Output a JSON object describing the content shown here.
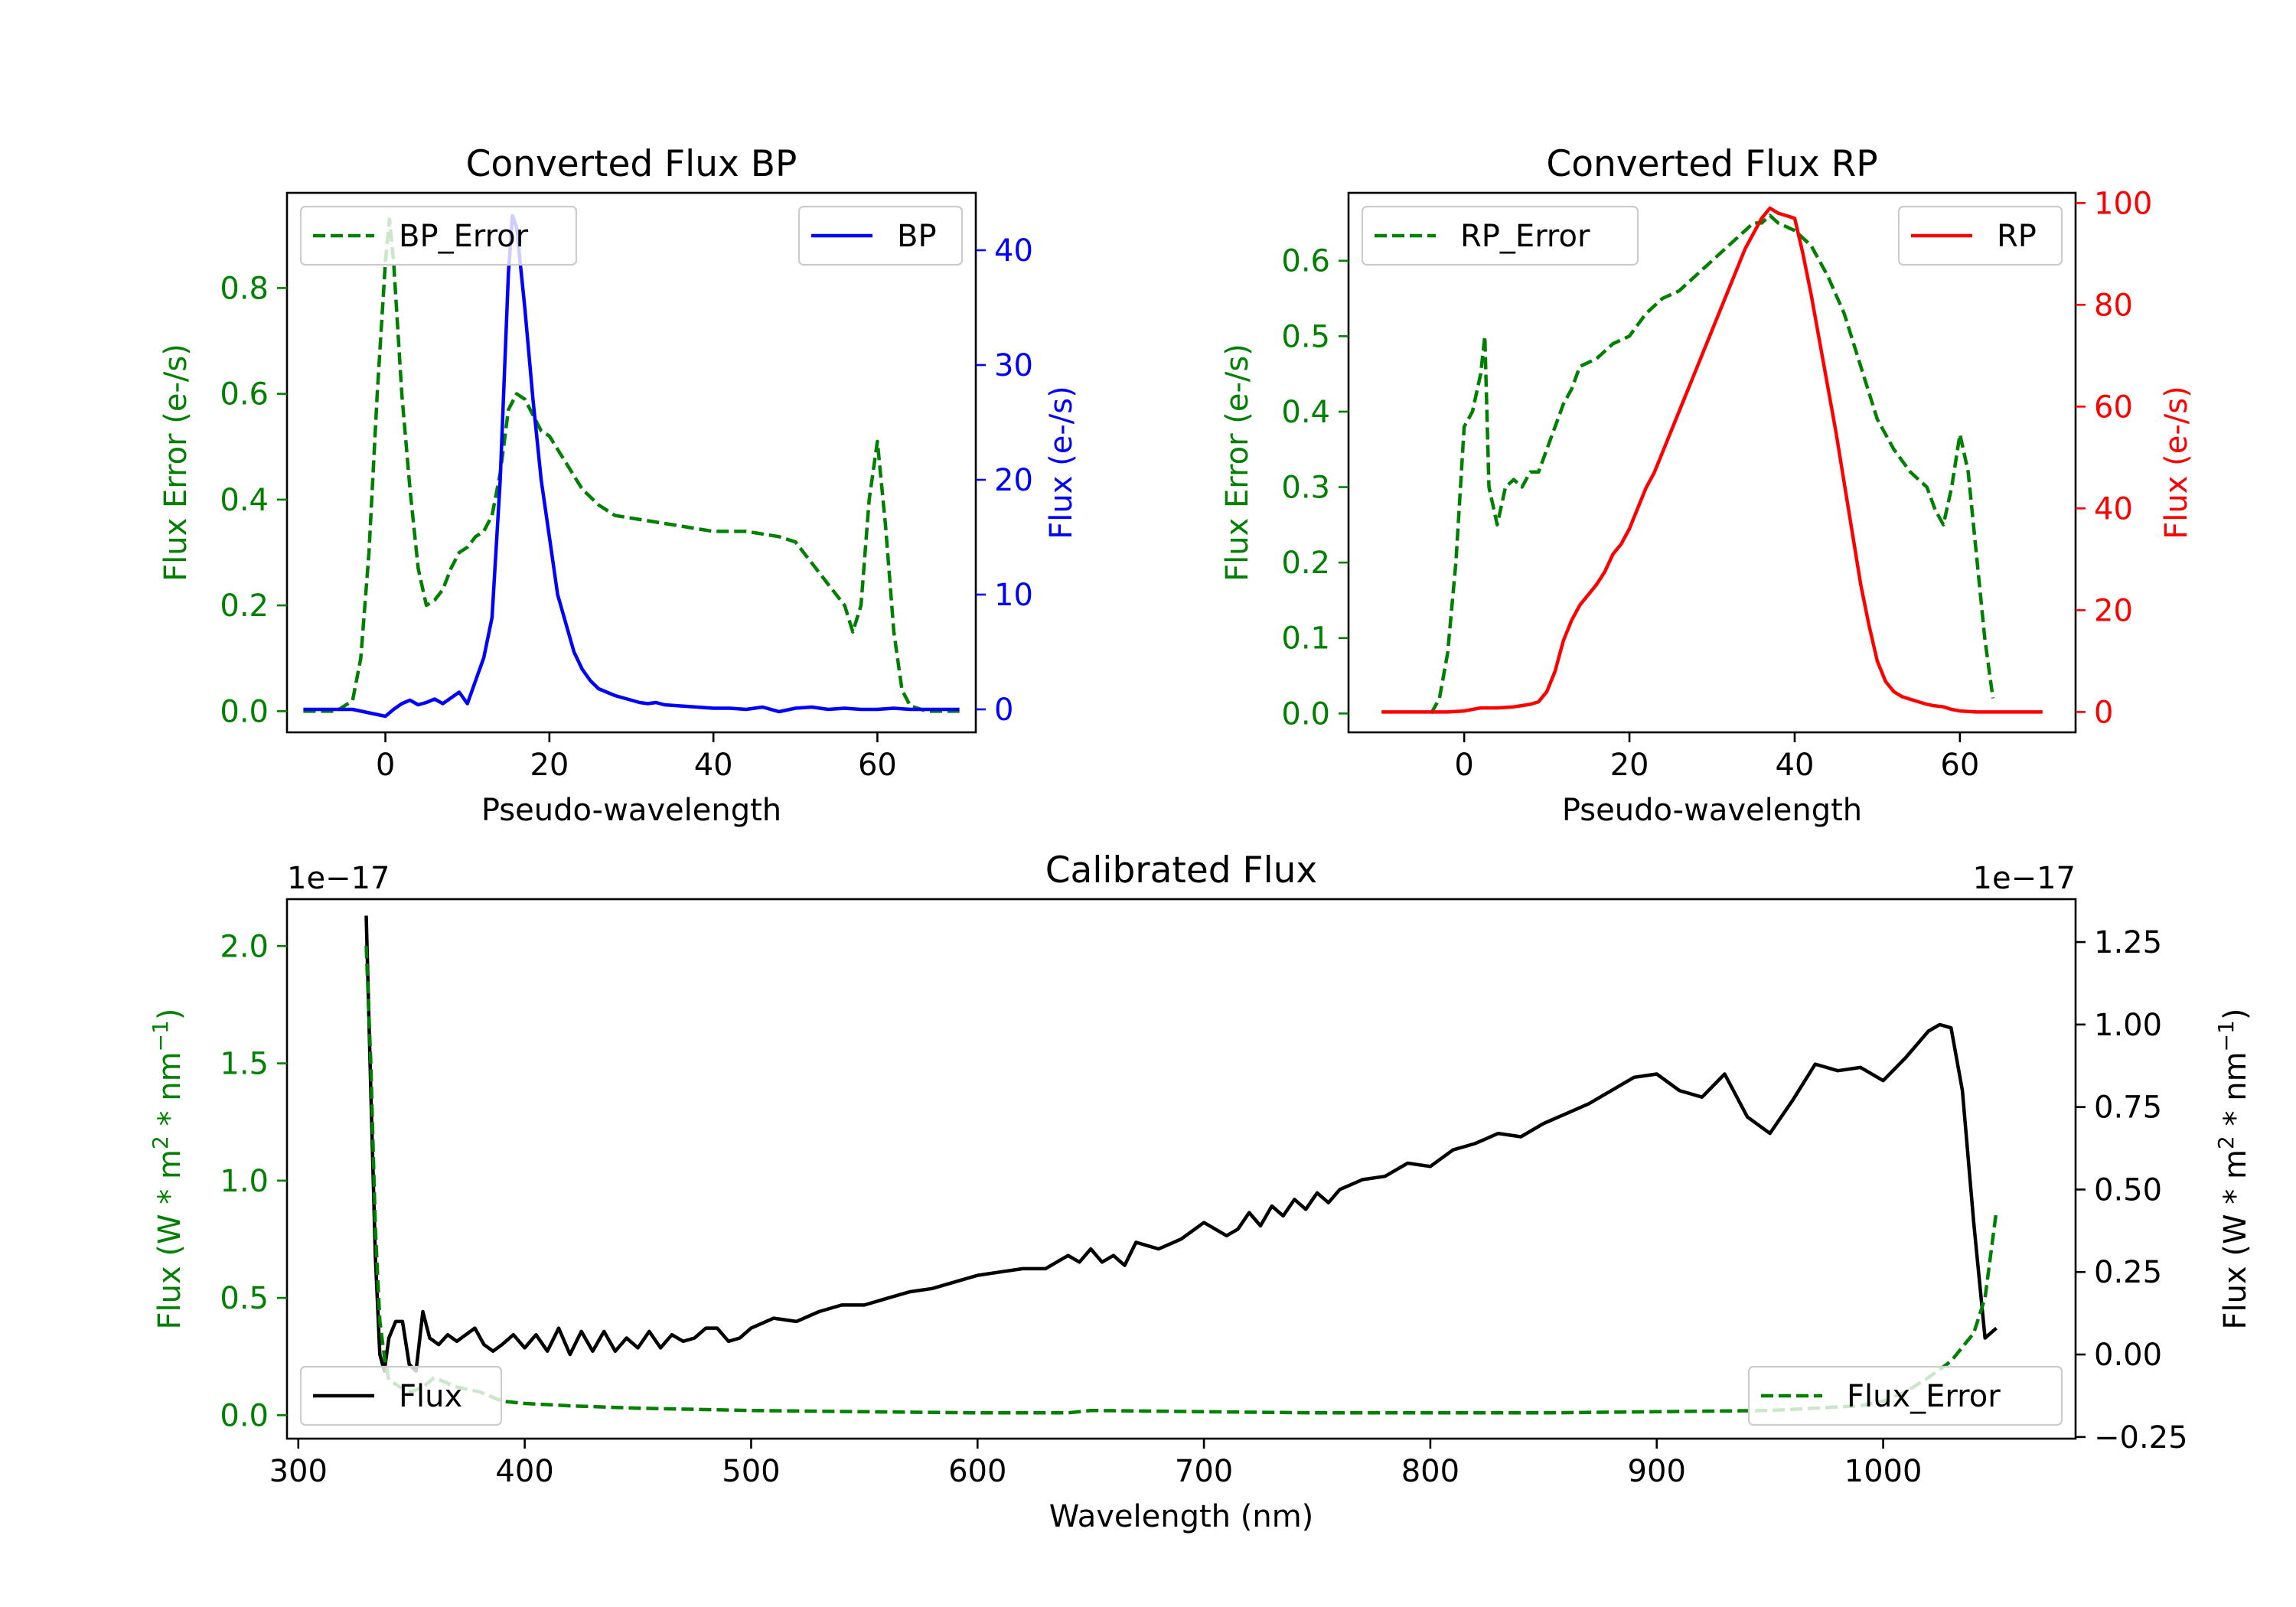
{
  "colors": {
    "error": "#008000",
    "bp": "#0000ff",
    "rp": "#ff0000",
    "flux": "#000000"
  },
  "chart_data": [
    {
      "type": "line",
      "title": "Converted Flux BP",
      "xlabel": "Pseudo-wavelength",
      "ylabel_left": "Flux Error (e-/s)",
      "ylabel_right": "Flux (e-/s)",
      "xlim": [
        -12,
        72
      ],
      "ylim_left": [
        -0.04,
        0.98
      ],
      "ylim_right": [
        -2,
        45
      ],
      "x_ticks": [
        0,
        20,
        40,
        60
      ],
      "x_tick_labels": [
        "0",
        "20",
        "40",
        "60"
      ],
      "y_left_ticks": [
        0.0,
        0.2,
        0.4,
        0.6,
        0.8
      ],
      "y_left_tick_labels": [
        "0.0",
        "0.2",
        "0.4",
        "0.6",
        "0.8"
      ],
      "y_right_ticks": [
        0,
        10,
        20,
        30,
        40
      ],
      "y_right_tick_labels": [
        "0",
        "10",
        "20",
        "30",
        "40"
      ],
      "series": [
        {
          "name": "BP_Error",
          "axis": "left",
          "style": "dashed",
          "color": "#008000",
          "legend": "top-left",
          "x": [
            -10,
            -6,
            -4,
            -3,
            -2,
            -1,
            0,
            0.5,
            1,
            2,
            3,
            4,
            5,
            6,
            7,
            8,
            9,
            10,
            11,
            12,
            13,
            14,
            15,
            16,
            17,
            18,
            19,
            20,
            22,
            24,
            26,
            28,
            30,
            32,
            34,
            36,
            38,
            40,
            42,
            44,
            46,
            48,
            50,
            52,
            54,
            56,
            57,
            58,
            59,
            60,
            61,
            62,
            63,
            64,
            66,
            70
          ],
          "values": [
            0.0,
            0.0,
            0.02,
            0.1,
            0.3,
            0.6,
            0.85,
            0.93,
            0.85,
            0.6,
            0.42,
            0.27,
            0.2,
            0.21,
            0.23,
            0.27,
            0.3,
            0.31,
            0.33,
            0.34,
            0.37,
            0.45,
            0.57,
            0.6,
            0.59,
            0.56,
            0.53,
            0.52,
            0.47,
            0.42,
            0.39,
            0.37,
            0.365,
            0.36,
            0.355,
            0.35,
            0.345,
            0.34,
            0.34,
            0.34,
            0.335,
            0.33,
            0.32,
            0.28,
            0.24,
            0.2,
            0.15,
            0.2,
            0.4,
            0.51,
            0.35,
            0.15,
            0.04,
            0.01,
            0.0,
            0.0
          ]
        },
        {
          "name": "BP",
          "axis": "right",
          "style": "solid",
          "color": "#0000ff",
          "legend": "top-right",
          "x": [
            -10,
            -4,
            -2,
            0,
            1,
            2,
            3,
            4,
            5,
            6,
            7,
            8,
            9,
            10,
            11,
            12,
            13,
            14,
            15,
            15.5,
            16,
            17,
            18,
            19,
            20,
            21,
            22,
            23,
            24,
            25,
            26,
            27,
            28,
            29,
            30,
            31,
            32,
            33,
            34,
            35,
            36,
            38,
            40,
            42,
            44,
            46,
            48,
            50,
            52,
            54,
            56,
            58,
            60,
            62,
            64,
            66,
            70
          ],
          "values": [
            0.0,
            0.0,
            -0.3,
            -0.6,
            0.0,
            0.5,
            0.8,
            0.4,
            0.6,
            0.9,
            0.5,
            1.0,
            1.5,
            0.5,
            2.5,
            4.5,
            8.0,
            20.0,
            38.0,
            43.0,
            42.0,
            35.0,
            27.0,
            20.0,
            15.0,
            10.0,
            7.5,
            5.0,
            3.5,
            2.5,
            1.8,
            1.5,
            1.2,
            1.0,
            0.8,
            0.6,
            0.5,
            0.6,
            0.4,
            0.35,
            0.3,
            0.2,
            0.1,
            0.1,
            0.0,
            0.2,
            -0.2,
            0.1,
            0.2,
            0.0,
            0.1,
            0.0,
            0.0,
            0.1,
            0.0,
            0.0,
            0.0
          ]
        }
      ],
      "legend": [
        {
          "label": "BP_Error",
          "series": "BP_Error",
          "placement": "top-left"
        },
        {
          "label": "BP",
          "series": "BP",
          "placement": "top-right"
        }
      ]
    },
    {
      "type": "line",
      "title": "Converted Flux RP",
      "xlabel": "Pseudo-wavelength",
      "ylabel_left": "Flux Error (e-/s)",
      "ylabel_right": "Flux (e-/s)",
      "xlim": [
        -14,
        74
      ],
      "ylim_left": [
        -0.025,
        0.69
      ],
      "ylim_right": [
        -4,
        102
      ],
      "x_ticks": [
        0,
        20,
        40,
        60
      ],
      "x_tick_labels": [
        "0",
        "20",
        "40",
        "60"
      ],
      "y_left_ticks": [
        0.0,
        0.1,
        0.2,
        0.3,
        0.4,
        0.5,
        0.6
      ],
      "y_left_tick_labels": [
        "0.0",
        "0.1",
        "0.2",
        "0.3",
        "0.4",
        "0.5",
        "0.6"
      ],
      "y_right_ticks": [
        0,
        20,
        40,
        60,
        80,
        100
      ],
      "y_right_tick_labels": [
        "0",
        "20",
        "40",
        "60",
        "80",
        "100"
      ],
      "series": [
        {
          "name": "RP_Error",
          "axis": "left",
          "style": "dashed",
          "color": "#008000",
          "legend": "top-left",
          "x": [
            -4,
            -3,
            -2,
            -1,
            0,
            1,
            2,
            2.5,
            3,
            4,
            5,
            6,
            7,
            8,
            9,
            10,
            11,
            12,
            13,
            14,
            16,
            18,
            20,
            22,
            24,
            26,
            28,
            30,
            32,
            34,
            35,
            36,
            37,
            38,
            40,
            42,
            44,
            46,
            48,
            50,
            52,
            54,
            55,
            56,
            57,
            58,
            59,
            60,
            61,
            62,
            63,
            64
          ],
          "values": [
            0.0,
            0.02,
            0.08,
            0.2,
            0.38,
            0.4,
            0.45,
            0.5,
            0.3,
            0.25,
            0.3,
            0.31,
            0.3,
            0.32,
            0.32,
            0.35,
            0.38,
            0.41,
            0.43,
            0.46,
            0.47,
            0.49,
            0.5,
            0.53,
            0.55,
            0.56,
            0.58,
            0.6,
            0.62,
            0.64,
            0.65,
            0.65,
            0.66,
            0.65,
            0.64,
            0.62,
            0.58,
            0.53,
            0.46,
            0.39,
            0.35,
            0.32,
            0.31,
            0.3,
            0.27,
            0.25,
            0.3,
            0.37,
            0.32,
            0.21,
            0.1,
            0.02
          ]
        },
        {
          "name": "RP",
          "axis": "right",
          "style": "solid",
          "color": "#ff0000",
          "legend": "top-right",
          "x": [
            -10,
            -2,
            0,
            2,
            4,
            6,
            8,
            9,
            10,
            11,
            12,
            13,
            14,
            15,
            16,
            17,
            18,
            19,
            20,
            21,
            22,
            23,
            24,
            25,
            26,
            27,
            28,
            29,
            30,
            31,
            32,
            33,
            34,
            35,
            36,
            37,
            38,
            39,
            40,
            41,
            42,
            43,
            44,
            45,
            46,
            47,
            48,
            49,
            50,
            51,
            52,
            53,
            54,
            55,
            56,
            57,
            58,
            59,
            60,
            62,
            64,
            66,
            70
          ],
          "values": [
            0.0,
            0.0,
            0.2,
            0.8,
            0.8,
            1.0,
            1.5,
            2.0,
            4.0,
            8.0,
            14.0,
            18.0,
            21.0,
            23.0,
            25.0,
            27.5,
            31.0,
            33.0,
            36.0,
            40.0,
            44.0,
            47.0,
            51.0,
            55.0,
            59.0,
            63.0,
            67.0,
            71.0,
            75.0,
            79.0,
            83.0,
            87.0,
            91.0,
            94.0,
            97.0,
            99.0,
            98.0,
            97.5,
            97.0,
            90.0,
            82.0,
            73.0,
            64.0,
            55.0,
            45.0,
            35.0,
            25.0,
            17.0,
            10.0,
            6.0,
            4.0,
            3.0,
            2.5,
            2.0,
            1.5,
            1.2,
            1.0,
            0.5,
            0.2,
            0.0,
            0.0,
            0.0,
            0.0
          ]
        }
      ],
      "legend": [
        {
          "label": "RP_Error",
          "series": "RP_Error",
          "placement": "top-left"
        },
        {
          "label": "RP",
          "series": "RP",
          "placement": "top-right"
        }
      ]
    },
    {
      "type": "line",
      "title": "Calibrated Flux",
      "xlabel": "Wavelength (nm)",
      "ylabel_left": "Flux (W * m$^2$ * nm$^{-1}$)",
      "ylabel_right": "Flux (W * m$^2$ * nm$^{-1}$)",
      "ylabel_left_parts": {
        "base": "Flux (W * m",
        "sup1": "2",
        "mid": " * nm",
        "sup2": "−1",
        "end": ")"
      },
      "ylabel_right_parts": {
        "base": "Flux (W * m",
        "sup1": "2",
        "mid": " * nm",
        "sup2": "−1",
        "end": ")"
      },
      "offset_left": "1e−17",
      "offset_right": "1e−17",
      "xlim": [
        295,
        1085
      ],
      "ylim_left": [
        -0.1,
        2.2
      ],
      "ylim_right": [
        -0.255,
        1.38
      ],
      "x_ticks": [
        300,
        400,
        500,
        600,
        700,
        800,
        900,
        1000
      ],
      "x_tick_labels": [
        "300",
        "400",
        "500",
        "600",
        "700",
        "800",
        "900",
        "1000"
      ],
      "y_left_ticks": [
        0.0,
        0.5,
        1.0,
        1.5,
        2.0
      ],
      "y_left_tick_labels": [
        "0.0",
        "0.5",
        "1.0",
        "1.5",
        "2.0"
      ],
      "y_right_ticks": [
        -0.25,
        0.0,
        0.25,
        0.5,
        0.75,
        1.0,
        1.25
      ],
      "y_right_tick_labels": [
        "−0.25",
        "0.00",
        "0.25",
        "0.50",
        "0.75",
        "1.00",
        "1.25"
      ],
      "series": [
        {
          "name": "Flux",
          "axis": "right",
          "style": "solid",
          "color": "#000000",
          "legend": "bottom-left",
          "x": [
            330,
            332,
            334,
            336,
            338,
            340,
            343,
            346,
            349,
            352,
            355,
            358,
            362,
            366,
            370,
            374,
            378,
            382,
            386,
            390,
            395,
            400,
            405,
            410,
            415,
            420,
            425,
            430,
            435,
            440,
            445,
            450,
            455,
            460,
            465,
            470,
            475,
            480,
            485,
            490,
            495,
            500,
            510,
            520,
            530,
            540,
            550,
            560,
            570,
            580,
            590,
            600,
            610,
            620,
            630,
            640,
            645,
            650,
            655,
            660,
            665,
            670,
            675,
            680,
            690,
            700,
            710,
            715,
            720,
            725,
            730,
            735,
            740,
            745,
            750,
            755,
            760,
            770,
            780,
            790,
            800,
            810,
            820,
            830,
            840,
            850,
            860,
            870,
            880,
            890,
            900,
            910,
            920,
            930,
            940,
            950,
            960,
            970,
            980,
            990,
            1000,
            1010,
            1020,
            1025,
            1030,
            1035,
            1040,
            1045,
            1050
          ],
          "values": [
            1.33,
            0.8,
            0.3,
            0.0,
            -0.05,
            0.05,
            0.1,
            0.1,
            -0.03,
            -0.05,
            0.13,
            0.05,
            0.03,
            0.06,
            0.04,
            0.06,
            0.08,
            0.03,
            0.01,
            0.03,
            0.06,
            0.02,
            0.06,
            0.01,
            0.08,
            0.0,
            0.07,
            0.01,
            0.07,
            0.01,
            0.05,
            0.02,
            0.07,
            0.02,
            0.06,
            0.04,
            0.05,
            0.08,
            0.08,
            0.04,
            0.05,
            0.08,
            0.11,
            0.1,
            0.13,
            0.15,
            0.15,
            0.17,
            0.19,
            0.2,
            0.22,
            0.24,
            0.25,
            0.26,
            0.26,
            0.3,
            0.28,
            0.32,
            0.28,
            0.3,
            0.27,
            0.34,
            0.33,
            0.32,
            0.35,
            0.4,
            0.36,
            0.38,
            0.43,
            0.39,
            0.45,
            0.42,
            0.47,
            0.44,
            0.49,
            0.46,
            0.5,
            0.53,
            0.54,
            0.58,
            0.57,
            0.62,
            0.64,
            0.67,
            0.66,
            0.7,
            0.73,
            0.76,
            0.8,
            0.84,
            0.85,
            0.8,
            0.78,
            0.85,
            0.72,
            0.67,
            0.77,
            0.88,
            0.86,
            0.87,
            0.83,
            0.9,
            0.98,
            1.0,
            0.99,
            0.8,
            0.4,
            0.05,
            0.08
          ]
        },
        {
          "name": "Flux_Error",
          "axis": "left",
          "style": "dashed",
          "color": "#008000",
          "legend": "bottom-right",
          "x": [
            330,
            332,
            334,
            336,
            338,
            340,
            345,
            350,
            355,
            360,
            370,
            380,
            390,
            400,
            420,
            450,
            500,
            550,
            600,
            640,
            650,
            700,
            750,
            800,
            850,
            900,
            950,
            990,
            1000,
            1010,
            1020,
            1030,
            1040,
            1045,
            1050
          ],
          "values": [
            2.0,
            1.5,
            0.8,
            0.4,
            0.25,
            0.15,
            0.12,
            0.1,
            0.12,
            0.16,
            0.12,
            0.1,
            0.06,
            0.05,
            0.04,
            0.03,
            0.02,
            0.015,
            0.01,
            0.01,
            0.02,
            0.015,
            0.01,
            0.01,
            0.01,
            0.015,
            0.02,
            0.04,
            0.06,
            0.1,
            0.16,
            0.23,
            0.35,
            0.5,
            0.87
          ]
        }
      ],
      "legend": [
        {
          "label": "Flux",
          "series": "Flux",
          "placement": "bottom-left"
        },
        {
          "label": "Flux_Error",
          "series": "Flux_Error",
          "placement": "bottom-right"
        }
      ]
    }
  ]
}
